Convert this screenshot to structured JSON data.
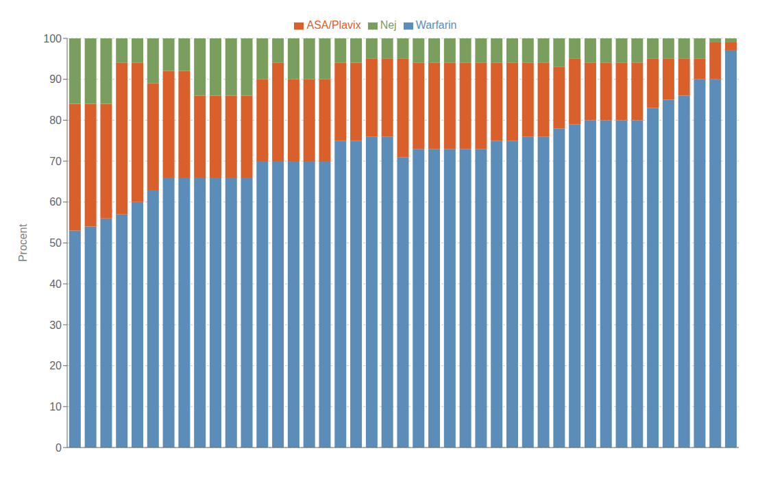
{
  "chart_data": {
    "type": "bar",
    "stacked": true,
    "ylabel": "Procent",
    "categories": [
      null,
      null,
      null,
      null,
      null,
      null,
      null,
      null,
      null,
      null,
      null,
      null,
      null,
      null,
      null,
      null,
      null,
      null,
      null,
      null,
      null,
      null,
      null,
      null,
      null,
      null,
      null,
      null,
      null,
      null,
      null,
      null,
      null,
      null,
      null,
      null,
      null,
      null,
      null,
      null,
      null,
      null,
      null
    ],
    "series": [
      {
        "name": "Warfarin",
        "color": "#5b8db8",
        "values": [
          53,
          54,
          56,
          57,
          60,
          63,
          66,
          66,
          66,
          66,
          66,
          66,
          70,
          70,
          70,
          70,
          70,
          75,
          75,
          76,
          76,
          71,
          73,
          73,
          73,
          73,
          73,
          75,
          75,
          76,
          76,
          78,
          79,
          80,
          80,
          80,
          80,
          83,
          85,
          86,
          90,
          90,
          97
        ]
      },
      {
        "name": "ASA/Plavix",
        "color": "#d95f2b",
        "values": [
          31,
          30,
          28,
          37,
          34,
          26,
          26,
          26,
          20,
          20,
          20,
          20,
          20,
          24,
          20,
          20,
          20,
          19,
          19,
          19,
          19,
          24,
          21,
          21,
          21,
          21,
          21,
          19,
          19,
          18,
          18,
          15,
          16,
          14,
          14,
          14,
          14,
          12,
          10,
          9,
          5,
          9,
          2
        ]
      },
      {
        "name": "Nej",
        "color": "#7a9e5e",
        "values": [
          16,
          16,
          16,
          6,
          6,
          11,
          8,
          8,
          14,
          14,
          14,
          14,
          10,
          6,
          10,
          10,
          10,
          6,
          6,
          5,
          5,
          5,
          6,
          6,
          6,
          6,
          6,
          6,
          6,
          6,
          6,
          7,
          5,
          6,
          6,
          6,
          6,
          5,
          5,
          5,
          5,
          1,
          1
        ]
      }
    ],
    "ylim": [
      0,
      100
    ],
    "yticks": [
      0,
      10,
      20,
      30,
      40,
      50,
      60,
      70,
      80,
      90,
      100
    ],
    "grid": true,
    "legend": "top",
    "tick_labels": "y"
  }
}
